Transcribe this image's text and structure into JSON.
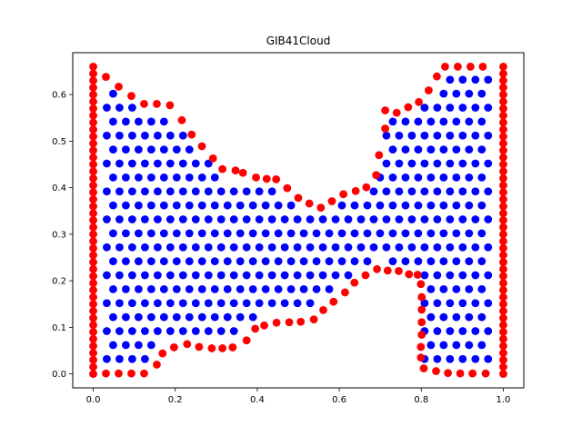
{
  "chart_data": {
    "type": "scatter",
    "title": "GIB41Cloud",
    "xlim": [
      -0.05,
      1.05
    ],
    "ylim": [
      -0.03,
      0.69
    ],
    "grid": false,
    "x_ticks": [
      "0.0",
      "0.2",
      "0.4",
      "0.6",
      "0.8",
      "1.0"
    ],
    "y_ticks": [
      "0.0",
      "0.1",
      "0.2",
      "0.3",
      "0.4",
      "0.5",
      "0.6"
    ],
    "colors": {
      "boundary": "#ff0000",
      "interior": "#0000ff"
    },
    "boundary_walls": [
      {
        "x": 0.0,
        "y_range": [
          0.0,
          0.66
        ],
        "count": 45
      },
      {
        "x": 1.0,
        "y_range": [
          0.0,
          0.66
        ],
        "count": 45
      }
    ],
    "boundary_top": [
      [
        0.031,
        0.638
      ],
      [
        0.062,
        0.617
      ],
      [
        0.093,
        0.597
      ],
      [
        0.124,
        0.58
      ],
      [
        0.155,
        0.58
      ],
      [
        0.187,
        0.577
      ],
      [
        0.216,
        0.545
      ],
      [
        0.24,
        0.514
      ],
      [
        0.265,
        0.489
      ],
      [
        0.292,
        0.463
      ],
      [
        0.315,
        0.44
      ],
      [
        0.347,
        0.437
      ],
      [
        0.365,
        0.432
      ],
      [
        0.397,
        0.422
      ],
      [
        0.423,
        0.419
      ],
      [
        0.446,
        0.418
      ],
      [
        0.473,
        0.399
      ],
      [
        0.5,
        0.378
      ],
      [
        0.527,
        0.366
      ],
      [
        0.555,
        0.357
      ],
      [
        0.582,
        0.371
      ],
      [
        0.61,
        0.386
      ],
      [
        0.64,
        0.393
      ],
      [
        0.666,
        0.401
      ],
      [
        0.69,
        0.427
      ],
      [
        0.697,
        0.47
      ],
      [
        0.712,
        0.527
      ],
      [
        0.712,
        0.566
      ],
      [
        0.74,
        0.561
      ],
      [
        0.768,
        0.573
      ],
      [
        0.794,
        0.584
      ],
      [
        0.818,
        0.609
      ],
      [
        0.838,
        0.639
      ],
      [
        0.858,
        0.66
      ],
      [
        0.889,
        0.66
      ],
      [
        0.92,
        0.66
      ],
      [
        0.95,
        0.66
      ]
    ],
    "boundary_bottom": [
      [
        0.031,
        0.001
      ],
      [
        0.062,
        0.001
      ],
      [
        0.093,
        0.001
      ],
      [
        0.124,
        0.001
      ],
      [
        0.155,
        0.02
      ],
      [
        0.169,
        0.044
      ],
      [
        0.197,
        0.057
      ],
      [
        0.229,
        0.064
      ],
      [
        0.258,
        0.058
      ],
      [
        0.289,
        0.055
      ],
      [
        0.315,
        0.055
      ],
      [
        0.34,
        0.057
      ],
      [
        0.374,
        0.072
      ],
      [
        0.395,
        0.097
      ],
      [
        0.417,
        0.104
      ],
      [
        0.447,
        0.11
      ],
      [
        0.478,
        0.111
      ],
      [
        0.506,
        0.112
      ],
      [
        0.538,
        0.117
      ],
      [
        0.561,
        0.137
      ],
      [
        0.586,
        0.155
      ],
      [
        0.614,
        0.175
      ],
      [
        0.637,
        0.196
      ],
      [
        0.664,
        0.212
      ],
      [
        0.692,
        0.225
      ],
      [
        0.718,
        0.222
      ],
      [
        0.745,
        0.221
      ],
      [
        0.77,
        0.214
      ],
      [
        0.791,
        0.213
      ],
      [
        0.799,
        0.193
      ],
      [
        0.801,
        0.165
      ],
      [
        0.801,
        0.138
      ],
      [
        0.801,
        0.111
      ],
      [
        0.801,
        0.084
      ],
      [
        0.799,
        0.058
      ],
      [
        0.799,
        0.035
      ],
      [
        0.806,
        0.012
      ],
      [
        0.836,
        0.006
      ],
      [
        0.865,
        0.002
      ],
      [
        0.895,
        0.001
      ],
      [
        0.925,
        0.001
      ],
      [
        0.957,
        0.001
      ]
    ],
    "interior_grid": {
      "x_spacing": 0.031,
      "y_spacing": 0.03,
      "margin": 0.012
    }
  }
}
